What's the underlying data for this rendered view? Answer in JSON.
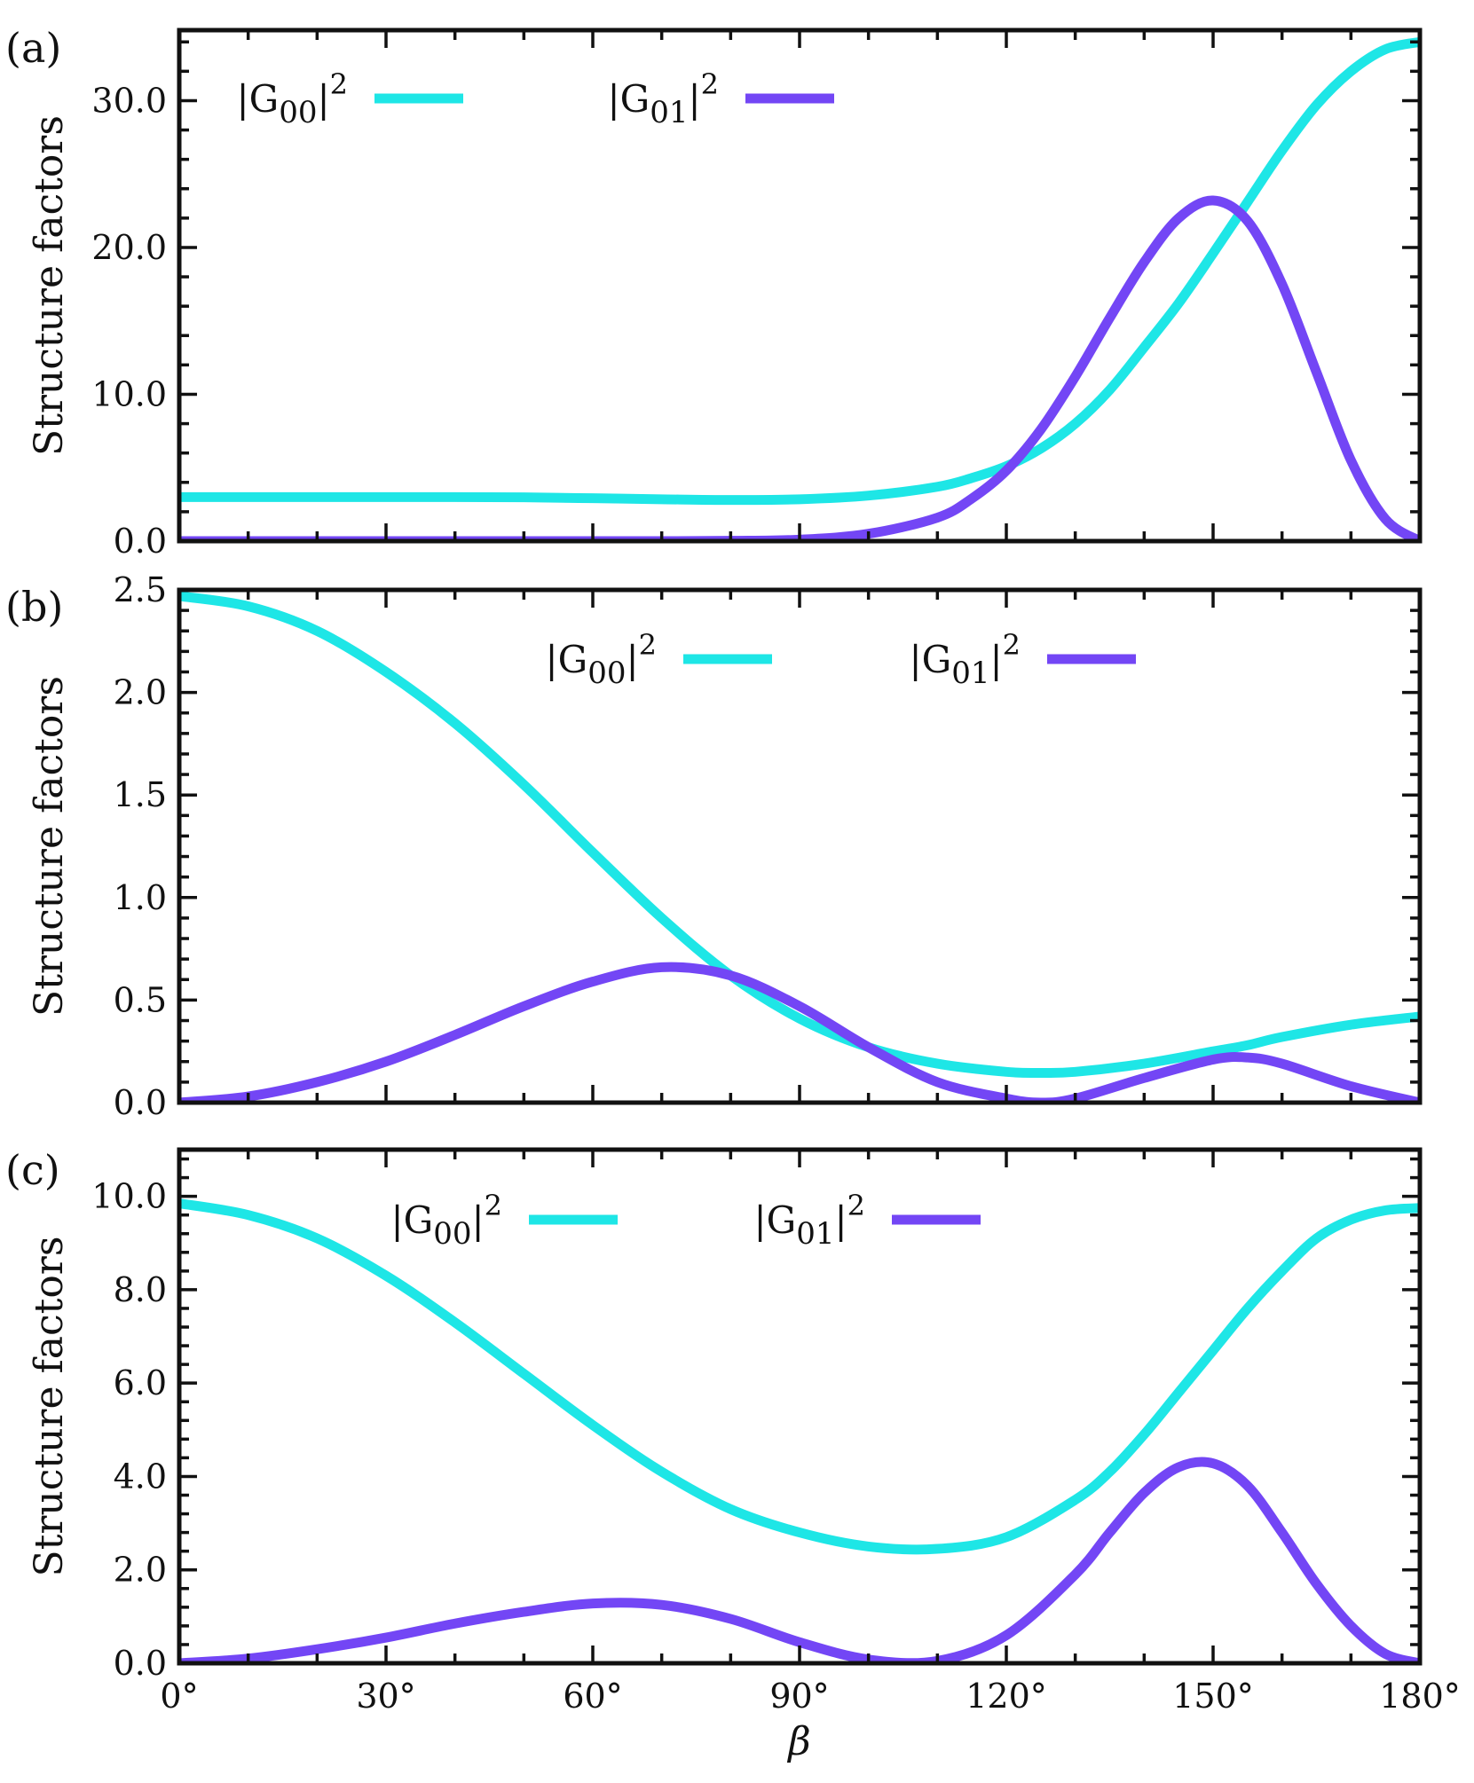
{
  "colors": {
    "g00": "#1ee6e6",
    "g01": "#7346f5",
    "axis": "#111111"
  },
  "chart_data": [
    {
      "type": "line",
      "panel_label": "(a)",
      "ylabel": "Structure factors",
      "xlabel": "",
      "ylim": [
        0,
        34.8
      ],
      "yticks": [
        0,
        10,
        20,
        30
      ],
      "ytick_labels": [
        "0.0",
        "10.0",
        "20.0",
        "30.0"
      ],
      "xlim": [
        0,
        180
      ],
      "legend_position": "top-center",
      "x": [
        0,
        10,
        20,
        30,
        40,
        50,
        60,
        70,
        80,
        90,
        100,
        110,
        115,
        120,
        125,
        130,
        135,
        140,
        145,
        150,
        155,
        160,
        165,
        170,
        175,
        180
      ],
      "series": [
        {
          "name": "|G00|2",
          "legend_main": "|G",
          "legend_sub": "00",
          "legend_close": "|",
          "legend_sup": "2",
          "values": [
            3.0,
            3.0,
            3.0,
            3.0,
            3.0,
            2.98,
            2.92,
            2.85,
            2.8,
            2.85,
            3.1,
            3.7,
            4.3,
            5.1,
            6.3,
            8.0,
            10.3,
            13.2,
            16.2,
            19.6,
            23.1,
            26.6,
            29.7,
            32.0,
            33.5,
            34.0
          ]
        },
        {
          "name": "|G01|2",
          "legend_main": "|G",
          "legend_sub": "01",
          "legend_close": "|",
          "legend_sup": "2",
          "values": [
            0.0,
            0.0,
            0.0,
            0.0,
            0.0,
            0.0,
            0.0,
            0.0,
            0.02,
            0.1,
            0.5,
            1.6,
            2.9,
            4.8,
            7.6,
            11.2,
            15.2,
            19.0,
            22.0,
            23.2,
            21.8,
            17.5,
            11.5,
            5.5,
            1.5,
            0.0
          ]
        }
      ]
    },
    {
      "type": "line",
      "panel_label": "(b)",
      "ylabel": "Structure factors",
      "xlabel": "",
      "ylim": [
        0,
        2.5
      ],
      "yticks": [
        0,
        0.5,
        1.0,
        1.5,
        2.0,
        2.5
      ],
      "ytick_labels": [
        "0.0",
        "0.5",
        "1.0",
        "1.5",
        "2.0",
        "2.5"
      ],
      "xlim": [
        0,
        180
      ],
      "legend_position": "top-right",
      "x": [
        0,
        10,
        20,
        30,
        40,
        50,
        60,
        70,
        80,
        90,
        100,
        110,
        120,
        125,
        130,
        140,
        150,
        155,
        160,
        170,
        180
      ],
      "series": [
        {
          "name": "|G00|2",
          "legend_main": "|G",
          "legend_sub": "00",
          "legend_close": "|",
          "legend_sup": "2",
          "values": [
            2.47,
            2.42,
            2.3,
            2.1,
            1.85,
            1.55,
            1.22,
            0.9,
            0.62,
            0.41,
            0.27,
            0.19,
            0.15,
            0.145,
            0.15,
            0.19,
            0.25,
            0.28,
            0.32,
            0.38,
            0.42
          ]
        },
        {
          "name": "|G01|2",
          "legend_main": "|G",
          "legend_sub": "01",
          "legend_close": "|",
          "legend_sup": "2",
          "values": [
            0.0,
            0.03,
            0.1,
            0.2,
            0.33,
            0.47,
            0.59,
            0.66,
            0.62,
            0.47,
            0.27,
            0.1,
            0.02,
            0.0,
            0.02,
            0.12,
            0.21,
            0.22,
            0.19,
            0.08,
            0.0
          ]
        }
      ]
    },
    {
      "type": "line",
      "panel_label": "(c)",
      "ylabel": "Structure factors",
      "xlabel": "β",
      "ylim": [
        0,
        11
      ],
      "yticks": [
        0,
        2,
        4,
        6,
        8,
        10
      ],
      "ytick_labels": [
        "0.0",
        "2.0",
        "4.0",
        "6.0",
        "8.0",
        "10.0"
      ],
      "xlim": [
        0,
        180
      ],
      "xticks": [
        0,
        30,
        60,
        90,
        120,
        150,
        180
      ],
      "xtick_labels": [
        "0°",
        "30°",
        "60°",
        "90°",
        "120°",
        "150°",
        "180°"
      ],
      "legend_position": "top-center",
      "x": [
        0,
        10,
        20,
        30,
        40,
        50,
        60,
        70,
        80,
        90,
        100,
        110,
        120,
        130,
        135,
        140,
        145,
        150,
        155,
        160,
        165,
        170,
        175,
        180
      ],
      "series": [
        {
          "name": "|G00|2",
          "legend_main": "|G",
          "legend_sub": "00",
          "legend_close": "|",
          "legend_sup": "2",
          "values": [
            9.85,
            9.6,
            9.1,
            8.3,
            7.3,
            6.2,
            5.1,
            4.1,
            3.3,
            2.8,
            2.5,
            2.45,
            2.7,
            3.5,
            4.1,
            4.9,
            5.8,
            6.7,
            7.6,
            8.4,
            9.1,
            9.5,
            9.7,
            9.75
          ]
        },
        {
          "name": "|G01|2",
          "legend_main": "|G",
          "legend_sub": "01",
          "legend_close": "|",
          "legend_sup": "2",
          "values": [
            0.0,
            0.1,
            0.3,
            0.55,
            0.85,
            1.1,
            1.28,
            1.25,
            0.95,
            0.45,
            0.08,
            0.05,
            0.6,
            1.9,
            2.8,
            3.65,
            4.2,
            4.28,
            3.8,
            2.8,
            1.7,
            0.8,
            0.2,
            0.0
          ]
        }
      ]
    }
  ]
}
